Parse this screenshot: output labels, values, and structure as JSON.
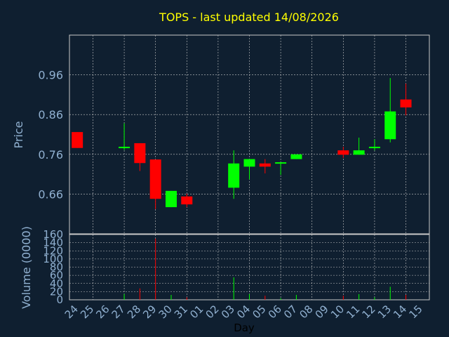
{
  "chart_data": {
    "type": "candlestick",
    "title": "TOPS - last updated 14/08/2026",
    "xlabel": "Day",
    "ylabel": "Price",
    "volume_label": "Volume (0000)",
    "colors": {
      "background": "#0f1f30",
      "up": "#00ff00",
      "down": "#ff0000",
      "grid": "#c8c8c8",
      "title": "#ffff00",
      "axis_text": "#90b0d0"
    },
    "price_ylim": [
      0.56,
      1.06
    ],
    "price_ticks": [
      0.66,
      0.76,
      0.86,
      0.96
    ],
    "volume_ylim": [
      0,
      160
    ],
    "volume_ticks": [
      0,
      20,
      40,
      60,
      80,
      100,
      120,
      140,
      160
    ],
    "x_ticks": [
      "24",
      "25",
      "26",
      "27",
      "28",
      "29",
      "30",
      "31",
      "01",
      "02",
      "03",
      "04",
      "05",
      "06",
      "07",
      "08",
      "09",
      "10",
      "11",
      "12",
      "13",
      "14",
      "15"
    ],
    "candles": [
      {
        "day": "24",
        "open": 0.816,
        "close": 0.776,
        "high": 0.816,
        "low": 0.776,
        "volume": 0
      },
      {
        "day": "27",
        "open": 0.776,
        "close": 0.779,
        "high": 0.838,
        "low": 0.771,
        "volume": 14
      },
      {
        "day": "28",
        "open": 0.788,
        "close": 0.738,
        "high": 0.788,
        "low": 0.718,
        "volume": 28
      },
      {
        "day": "29",
        "open": 0.747,
        "close": 0.648,
        "high": 0.747,
        "low": 0.622,
        "volume": 150
      },
      {
        "day": "30",
        "open": 0.627,
        "close": 0.668,
        "high": 0.668,
        "low": 0.627,
        "volume": 12
      },
      {
        "day": "31",
        "open": 0.654,
        "close": 0.634,
        "high": 0.661,
        "low": 0.627,
        "volume": 6
      },
      {
        "day": "03",
        "open": 0.676,
        "close": 0.737,
        "high": 0.77,
        "low": 0.648,
        "volume": 55
      },
      {
        "day": "04",
        "open": 0.729,
        "close": 0.748,
        "high": 0.748,
        "low": 0.697,
        "volume": 14
      },
      {
        "day": "05",
        "open": 0.737,
        "close": 0.729,
        "high": 0.748,
        "low": 0.712,
        "volume": 10
      },
      {
        "day": "06",
        "open": 0.737,
        "close": 0.74,
        "high": 0.74,
        "low": 0.708,
        "volume": 4
      },
      {
        "day": "07",
        "open": 0.748,
        "close": 0.76,
        "high": 0.76,
        "low": 0.748,
        "volume": 12
      },
      {
        "day": "10",
        "open": 0.77,
        "close": 0.759,
        "high": 0.779,
        "low": 0.751,
        "volume": 10
      },
      {
        "day": "11",
        "open": 0.759,
        "close": 0.77,
        "high": 0.802,
        "low": 0.759,
        "volume": 14
      },
      {
        "day": "12",
        "open": 0.777,
        "close": 0.779,
        "high": 0.798,
        "low": 0.77,
        "volume": 6
      },
      {
        "day": "13",
        "open": 0.798,
        "close": 0.868,
        "high": 0.952,
        "low": 0.79,
        "volume": 32
      },
      {
        "day": "14",
        "open": 0.898,
        "close": 0.878,
        "high": 0.938,
        "low": 0.858,
        "volume": 12
      }
    ]
  }
}
